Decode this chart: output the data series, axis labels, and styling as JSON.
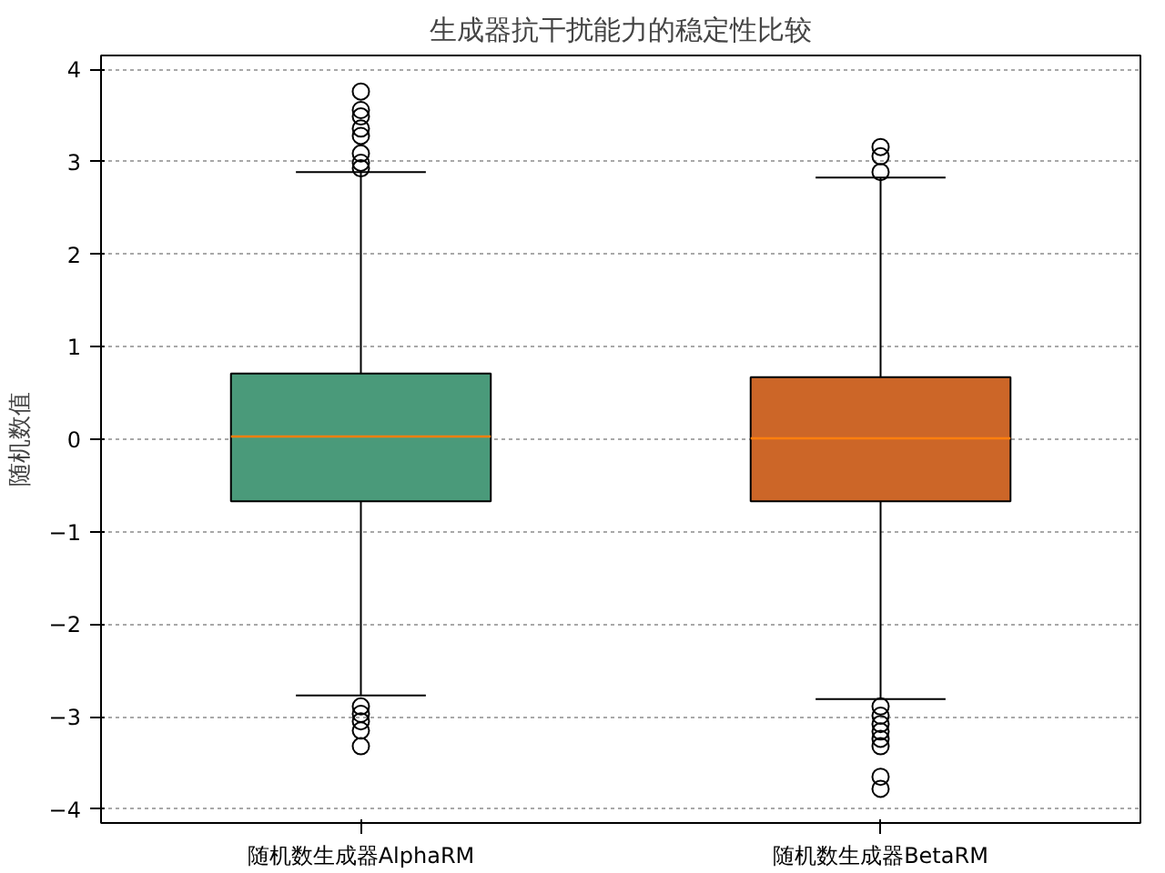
{
  "chart_data": {
    "type": "box",
    "title": "生成器抗干扰能力的稳定性比较",
    "ylabel": "随机数值",
    "categories": [
      "随机数生成器AlphaRM",
      "随机数生成器BetaRM"
    ],
    "colors": [
      "#4a9a7a",
      "#cc6628"
    ],
    "boxes": [
      {
        "low": -2.77,
        "q1": -0.67,
        "median": 0.03,
        "q3": 0.71,
        "high": 2.89,
        "outliers": [
          3.76,
          3.56,
          3.49,
          3.36,
          3.28,
          3.09,
          2.99,
          2.93,
          -2.89,
          -2.97,
          -3.05,
          -3.15,
          -3.32
        ]
      },
      {
        "low": -2.81,
        "q1": -0.67,
        "median": 0.01,
        "q3": 0.67,
        "high": 2.83,
        "outliers": [
          3.16,
          3.06,
          2.89,
          -2.89,
          -2.99,
          -3.08,
          -3.16,
          -3.24,
          -3.32,
          -3.65,
          -3.78
        ]
      }
    ],
    "ylim": [
      -4.15,
      4.15
    ],
    "yticks": [
      {
        "value": -4,
        "label": "−4"
      },
      {
        "value": -3,
        "label": "−3"
      },
      {
        "value": -2,
        "label": "−2"
      },
      {
        "value": -1,
        "label": "−1"
      },
      0,
      1,
      2,
      3,
      4
    ],
    "grid": "y"
  }
}
